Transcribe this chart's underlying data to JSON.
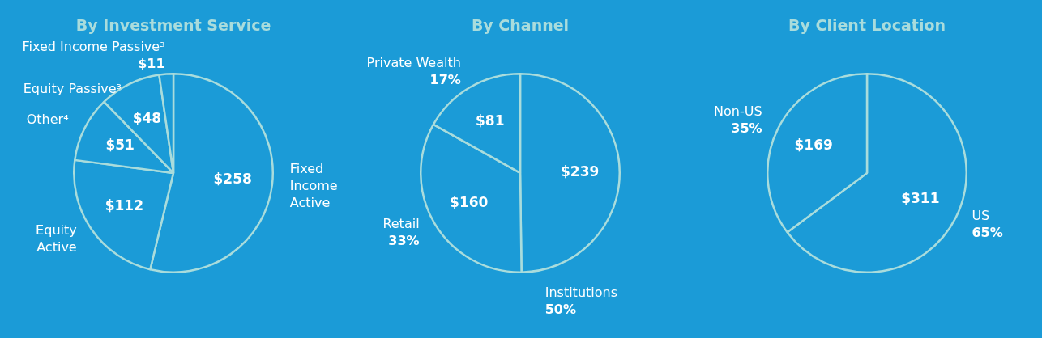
{
  "chart_data": [
    {
      "type": "pie",
      "title": "By Investment Service",
      "categories": [
        "Fixed Income Active",
        "Equity Active",
        "Other⁴",
        "Equity Passive³",
        "Fixed Income Passive³"
      ],
      "values": [
        258,
        112,
        51,
        48,
        11
      ],
      "value_labels": [
        "$258",
        "$112",
        "$51",
        "$48",
        "$11"
      ],
      "colors": [
        "#1b9bd7",
        "#1b9bd7",
        "#1b9bd7",
        "#1b9bd7",
        "#1b9bd7"
      ]
    },
    {
      "type": "pie",
      "title": "By Channel",
      "categories": [
        "Institutions",
        "Retail",
        "Private Wealth"
      ],
      "values": [
        239,
        160,
        81
      ],
      "value_labels": [
        "$239",
        "$160",
        "$81"
      ],
      "colors": [
        "#1b9bd7",
        "#1b9bd7",
        "#1b9bd7"
      ],
      "annotations": [
        {
          "text": "50%",
          "x": "Institutions"
        },
        {
          "text": "33%",
          "x": "Retail"
        },
        {
          "text": "17%",
          "x": "Private Wealth"
        }
      ]
    },
    {
      "type": "pie",
      "title": "By Client Location",
      "categories": [
        "US",
        "Non-US"
      ],
      "values": [
        311,
        169
      ],
      "value_labels": [
        "$311",
        "$169"
      ],
      "colors": [
        "#1b9bd7",
        "#1b9bd7"
      ],
      "annotations": [
        {
          "text": "65%",
          "x": "US"
        },
        {
          "text": "35%",
          "x": "Non-US"
        }
      ]
    }
  ]
}
